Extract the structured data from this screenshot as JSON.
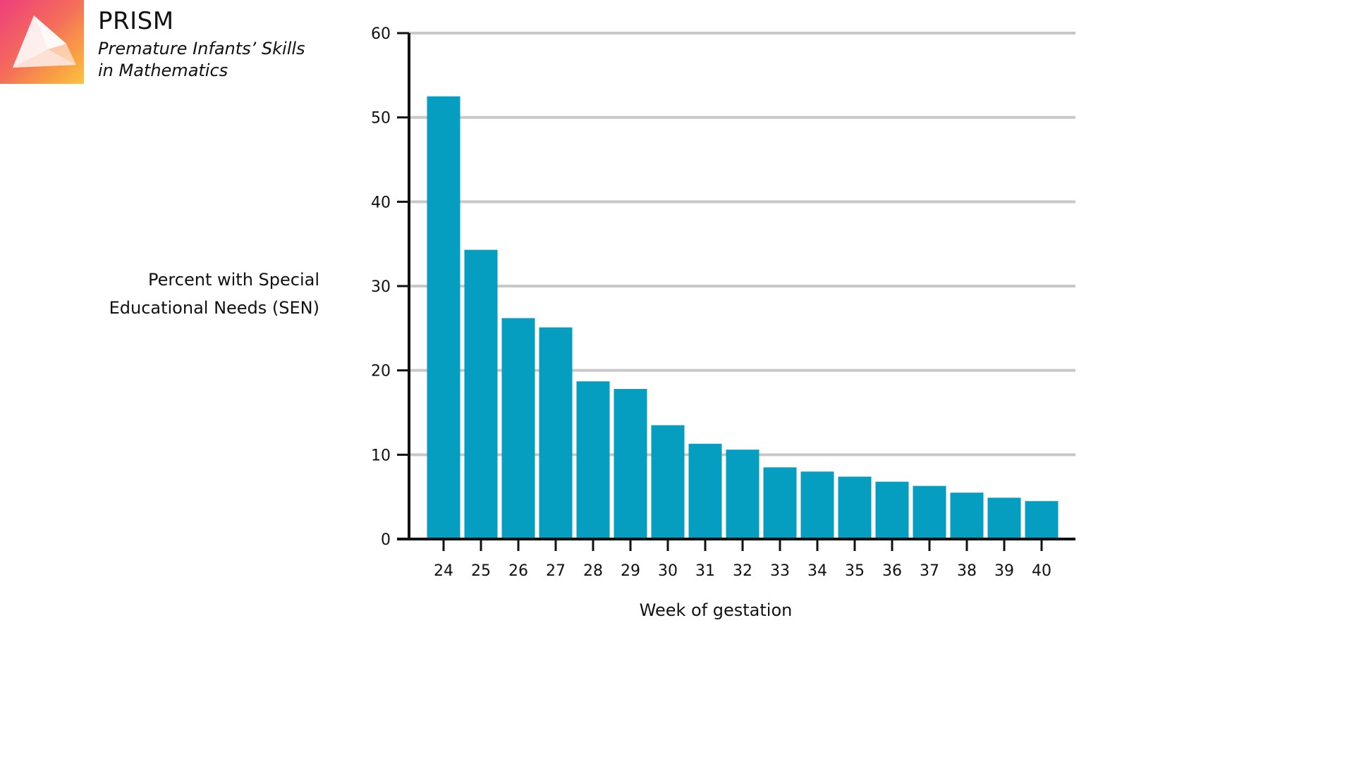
{
  "brand": {
    "title": "PRISM",
    "subtitle_line1": "Premature Infants’ Skills",
    "subtitle_line2": "in Mathematics",
    "logo_gradient": [
      "#ee3f7c",
      "#f99b45",
      "#fcc23f"
    ]
  },
  "chart_data": {
    "type": "bar",
    "title": "",
    "ylabel_line1": "Percent with Special",
    "ylabel_line2": "Educational Needs (SEN)",
    "xlabel": "Week of gestation",
    "categories": [
      "24",
      "25",
      "26",
      "27",
      "28",
      "29",
      "30",
      "31",
      "32",
      "33",
      "34",
      "35",
      "36",
      "37",
      "38",
      "39",
      "40"
    ],
    "values": [
      52.5,
      34.3,
      26.2,
      25.1,
      18.7,
      17.8,
      13.5,
      11.3,
      10.6,
      8.5,
      8.0,
      7.4,
      6.8,
      6.3,
      5.5,
      4.9,
      4.5
    ],
    "ylim": [
      0,
      60
    ],
    "yticks": [
      0,
      10,
      20,
      30,
      40,
      50,
      60
    ],
    "grid": true,
    "bar_color": "#059dc0",
    "grid_color": "#c8c8c8",
    "axis_color": "#111111"
  }
}
